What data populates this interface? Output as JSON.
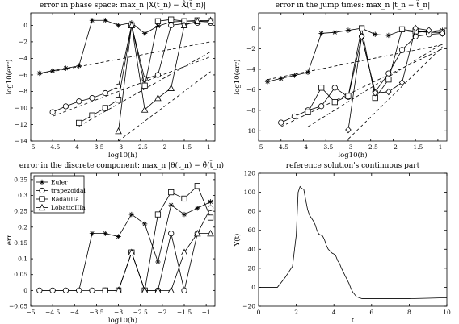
{
  "chart_data": [
    {
      "type": "line",
      "title": "error in phase space: max_n |X(t_n) − X̂(t̂_n)|",
      "xlabel": "log10(h)",
      "ylabel": "log10(err)",
      "xlim": [
        -5,
        -0.8
      ],
      "ylim": [
        -14,
        1.5
      ],
      "xticks": [
        -5,
        -4.5,
        -4,
        -3.5,
        -3,
        -2.5,
        -2,
        -1.5,
        -1
      ],
      "yticks": [
        -14,
        -12,
        -10,
        -8,
        -6,
        -4,
        -2,
        0
      ],
      "grid": false,
      "series": [
        {
          "name": "Euler",
          "marker": "star",
          "x": [
            -4.8,
            -4.5,
            -4.2,
            -3.9,
            -3.6,
            -3.3,
            -3.0,
            -2.7,
            -2.4,
            -2.1,
            -1.8,
            -1.5,
            -1.2,
            -0.9
          ],
          "y": [
            -5.8,
            -5.5,
            -5.2,
            -4.9,
            0.6,
            0.6,
            0.0,
            0.3,
            -1.0,
            -0.1,
            0.4,
            0.5,
            0.5,
            0.4
          ]
        },
        {
          "name": "trapezoidal",
          "marker": "circle",
          "x": [
            -4.5,
            -4.2,
            -3.9,
            -3.6,
            -3.3,
            -3.0,
            -2.7,
            -2.4,
            -2.1,
            -1.8,
            -1.5,
            -1.2,
            -0.9
          ],
          "y": [
            -10.5,
            -9.8,
            -9.2,
            -8.8,
            -8.2,
            -7.4,
            0.0,
            -6.5,
            -6.0,
            0.0,
            0.2,
            0.3,
            0.3
          ]
        },
        {
          "name": "RadauIIa",
          "marker": "square",
          "x": [
            -3.9,
            -3.6,
            -3.3,
            -3.0,
            -2.7,
            -2.4,
            -2.1,
            -1.8,
            -1.5,
            -1.2,
            -0.9
          ],
          "y": [
            -11.8,
            -10.9,
            -10.0,
            -9.0,
            0.0,
            -7.3,
            0.5,
            0.7,
            0.5,
            0.6,
            0.5
          ]
        },
        {
          "name": "LobattoIIIa",
          "marker": "triangle",
          "x": [
            -3.0,
            -2.7,
            -2.4,
            -2.1,
            -1.8,
            -1.5,
            -1.2,
            -0.9
          ],
          "y": [
            -12.8,
            0.0,
            -10.2,
            -8.8,
            -7.6,
            0.0,
            0.5,
            0.6
          ]
        }
      ],
      "reference_lines": [
        {
          "x": [
            -4.8,
            -0.9
          ],
          "y": [
            -5.9,
            -2.0
          ]
        },
        {
          "x": [
            -4.5,
            -0.9
          ],
          "y": [
            -11.0,
            -3.8
          ]
        },
        {
          "x": [
            -3.9,
            -0.9
          ],
          "y": [
            -12.2,
            -3.2
          ]
        },
        {
          "x": [
            -3.0,
            -0.9
          ],
          "y": [
            -14.0,
            -5.6
          ]
        }
      ]
    },
    {
      "type": "line",
      "title": "error in the jump times: max_n |t_n − t̂_n|",
      "xlabel": "log10(h)",
      "ylabel": "log10(err)",
      "xlim": [
        -5,
        -0.8
      ],
      "ylim": [
        -11,
        1.5
      ],
      "xticks": [
        -5,
        -4.5,
        -4,
        -3.5,
        -3,
        -2.5,
        -2,
        -1.5,
        -1
      ],
      "yticks": [
        -10,
        -8,
        -6,
        -4,
        -2,
        0
      ],
      "grid": false,
      "series": [
        {
          "name": "Euler",
          "marker": "star",
          "x": [
            -4.8,
            -4.5,
            -4.2,
            -3.9,
            -3.6,
            -3.3,
            -3.0,
            -2.7,
            -2.4,
            -2.1,
            -1.8,
            -1.5,
            -1.2,
            -0.9
          ],
          "y": [
            -5.2,
            -4.9,
            -4.6,
            -4.3,
            -0.5,
            -0.4,
            -0.2,
            0.0,
            -0.6,
            -0.7,
            -0.2,
            -0.4,
            -0.3,
            -0.2
          ]
        },
        {
          "name": "trapezoidal",
          "marker": "circle",
          "x": [
            -4.5,
            -4.2,
            -3.9,
            -3.6,
            -3.3,
            -3.0,
            -2.7,
            -2.4,
            -2.1,
            -1.8,
            -1.5,
            -1.2,
            -0.9
          ],
          "y": [
            -9.2,
            -8.6,
            -8.0,
            -7.6,
            -5.8,
            -6.7,
            -0.8,
            -6.2,
            -4.4,
            -2.1,
            -0.8,
            -0.6,
            -0.5
          ]
        },
        {
          "name": "RadauIIa",
          "marker": "square",
          "x": [
            -3.9,
            -3.6,
            -3.3,
            -3.0,
            -2.7,
            -2.4,
            -2.1,
            -1.8,
            -1.5,
            -1.2,
            -0.9
          ],
          "y": [
            -8.2,
            -5.8,
            -7.2,
            -6.6,
            0.0,
            -6.8,
            -5.0,
            -0.1,
            -0.3,
            -0.4,
            -0.4
          ]
        },
        {
          "name": "LobattoIIIa",
          "marker": "diamond",
          "x": [
            -3.0,
            -2.7,
            -2.4,
            -2.1,
            -1.8,
            -1.5,
            -1.2,
            -0.9
          ],
          "y": [
            -9.9,
            -0.8,
            -6.3,
            -6.2,
            -5.3,
            0.0,
            -0.2,
            -0.5
          ]
        }
      ],
      "reference_lines": [
        {
          "x": [
            -4.8,
            -0.9
          ],
          "y": [
            -5.0,
            -1.6
          ]
        },
        {
          "x": [
            -4.5,
            -0.9
          ],
          "y": [
            -9.6,
            -2.0
          ]
        },
        {
          "x": [
            -3.9,
            -0.9
          ],
          "y": [
            -9.6,
            -1.5
          ]
        },
        {
          "x": [
            -3.0,
            -0.9
          ],
          "y": [
            -10.8,
            -1.8
          ]
        }
      ]
    },
    {
      "type": "line",
      "title": "error in the discrete component: max_n |θ(t_n) − θ̂(t̂_n)|",
      "xlabel": "log10(h)",
      "ylabel": "err",
      "xlim": [
        -5,
        -0.8
      ],
      "ylim": [
        -0.05,
        0.37
      ],
      "xticks": [
        -5,
        -4.5,
        -4,
        -3.5,
        -3,
        -2.5,
        -2,
        -1.5,
        -1
      ],
      "yticks": [
        -0.05,
        0,
        0.05,
        0.1,
        0.15,
        0.2,
        0.25,
        0.3,
        0.35
      ],
      "legend": {
        "position": "top-left",
        "entries": [
          "Euler",
          "trapezoidal",
          "RadauIIa",
          "LobattoIIIa"
        ]
      },
      "grid": false,
      "series": [
        {
          "name": "Euler",
          "marker": "star",
          "x": [
            -4.8,
            -4.5,
            -4.2,
            -3.9,
            -3.6,
            -3.3,
            -3.0,
            -2.7,
            -2.4,
            -2.1,
            -1.8,
            -1.5,
            -1.2,
            -0.9
          ],
          "y": [
            0,
            0,
            0,
            0,
            0.18,
            0.18,
            0.17,
            0.24,
            0.21,
            0.09,
            0.27,
            0.24,
            0.26,
            0.28
          ]
        },
        {
          "name": "trapezoidal",
          "marker": "circle",
          "x": [
            -4.8,
            -4.5,
            -4.2,
            -3.9,
            -3.6,
            -3.3,
            -3.0,
            -2.7,
            -2.4,
            -2.1,
            -1.8,
            -1.5,
            -1.2,
            -0.9
          ],
          "y": [
            0,
            0,
            0,
            0,
            0,
            0,
            0,
            0.12,
            0,
            0,
            0.18,
            0,
            0.18,
            0.26
          ]
        },
        {
          "name": "RadauIIa",
          "marker": "square",
          "x": [
            -3.3,
            -3.0,
            -2.7,
            -2.4,
            -2.1,
            -1.8,
            -1.5,
            -1.2,
            -0.9
          ],
          "y": [
            0,
            0,
            0.12,
            0,
            0.24,
            0.31,
            0.29,
            0.33,
            0.23
          ]
        },
        {
          "name": "LobattoIIIa",
          "marker": "triangle",
          "x": [
            -3.0,
            -2.7,
            -2.4,
            -2.1,
            -1.8,
            -1.5,
            -1.2,
            -0.9
          ],
          "y": [
            0,
            0.12,
            0,
            0,
            0,
            0.12,
            0.18,
            0.18
          ]
        }
      ]
    },
    {
      "type": "line",
      "title": "reference solution's continuous part",
      "xlabel": "t",
      "ylabel": "Y(t)",
      "xlim": [
        0,
        10
      ],
      "ylim": [
        -20,
        120
      ],
      "xticks": [
        0,
        2,
        4,
        6,
        8,
        10
      ],
      "yticks": [
        -20,
        0,
        20,
        40,
        60,
        80,
        100,
        120
      ],
      "grid": false,
      "series": [
        {
          "x": [
            0,
            1.0,
            1.2,
            1.4,
            1.6,
            1.8,
            2.0,
            2.1,
            2.2,
            2.3,
            2.4,
            2.5,
            2.6,
            2.7,
            2.8,
            2.9,
            3.0,
            3.1,
            3.2,
            3.3,
            3.4,
            3.5,
            3.6,
            3.7,
            3.8,
            3.9,
            4.0,
            4.1,
            4.2,
            4.3,
            4.4,
            4.5,
            4.6,
            4.7,
            4.8,
            4.9,
            5.0,
            5.2,
            5.5,
            6.0,
            7.0,
            8.0,
            9.0,
            10.0
          ],
          "y": [
            0,
            0,
            5,
            10,
            16,
            22,
            55,
            100,
            106,
            104,
            103,
            92,
            82,
            76,
            73,
            70,
            66,
            60,
            56,
            55,
            54,
            50,
            44,
            40,
            38,
            36,
            35,
            33,
            28,
            25,
            20,
            16,
            12,
            8,
            4,
            -1,
            -5,
            -10,
            -12,
            -12,
            -12,
            -12,
            -11.5,
            -11
          ]
        }
      ]
    }
  ]
}
